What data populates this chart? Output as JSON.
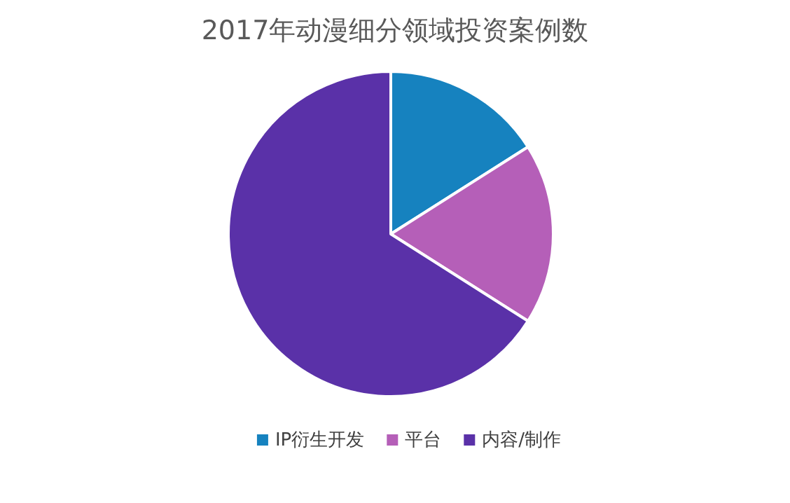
{
  "chart_data": {
    "type": "pie",
    "title": "2017年动漫细分领域投资案例数",
    "categories": [
      "IP衍生开发",
      "平台",
      "内容/制作"
    ],
    "values": [
      16,
      18,
      66
    ],
    "colors": [
      "#1682bf",
      "#b55fb8",
      "#5a31a8"
    ],
    "legend": "bottom"
  }
}
